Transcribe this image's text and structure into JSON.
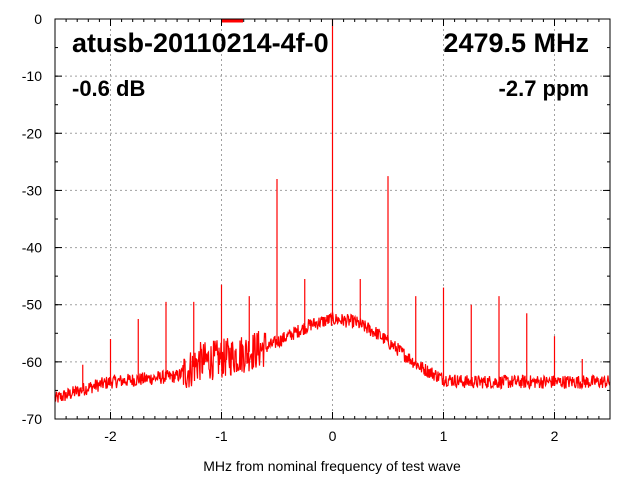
{
  "chart_data": {
    "type": "line",
    "title": "atusb-20110214-4f-0",
    "frequency_label": "2479.5 MHz",
    "level_label": "-0.6 dB",
    "offset_label": "-2.7 ppm",
    "xlabel": "MHz from nominal frequency of test wave",
    "ylabel": "",
    "xlim": [
      -2.5,
      2.5
    ],
    "ylim": [
      -70,
      0
    ],
    "xticks": [
      -2,
      -1,
      0,
      1,
      2
    ],
    "xtick_labels": [
      "-2",
      "-1",
      "0",
      "1",
      "2"
    ],
    "yticks": [
      0,
      -10,
      -20,
      -30,
      -40,
      -50,
      -60,
      -70
    ],
    "ytick_labels": [
      "0",
      "-10",
      "-20",
      "-30",
      "-40",
      "-50",
      "-60",
      "-70"
    ],
    "grid": true,
    "legend": "top-center",
    "series_color": "#ff0000",
    "noise_floor": {
      "x": [
        -2.5,
        -2.2,
        -2.0,
        -1.7,
        -1.4,
        -1.3,
        -1.2,
        -1.0,
        -0.8,
        -0.6,
        -0.4,
        -0.2,
        0.0,
        0.2,
        0.4,
        0.6,
        0.8,
        1.0,
        1.2,
        1.5,
        2.0,
        2.5
      ],
      "y": [
        -66.5,
        -64.5,
        -63.5,
        -63,
        -62.5,
        -61.5,
        -60,
        -59.5,
        -58.5,
        -57.5,
        -55.5,
        -53.5,
        -52.5,
        -53,
        -55,
        -58,
        -61,
        -63,
        -63.5,
        -63.5,
        -63.5,
        -63.5
      ]
    },
    "spurs": {
      "x": [
        -2.25,
        -2.0,
        -1.75,
        -1.5,
        -1.25,
        -1.0,
        -0.75,
        -0.5,
        -0.25,
        0.0,
        0.25,
        0.5,
        0.75,
        1.0,
        1.25,
        1.5,
        1.75,
        2.0,
        2.25
      ],
      "y": [
        -60.5,
        -56,
        -52.5,
        -49.5,
        -49.5,
        -46.5,
        -48.5,
        -28,
        -45.5,
        0,
        -45.5,
        -27.5,
        -48.5,
        -47,
        -50,
        -48.5,
        -51.5,
        -55.5,
        -59.5
      ]
    }
  }
}
